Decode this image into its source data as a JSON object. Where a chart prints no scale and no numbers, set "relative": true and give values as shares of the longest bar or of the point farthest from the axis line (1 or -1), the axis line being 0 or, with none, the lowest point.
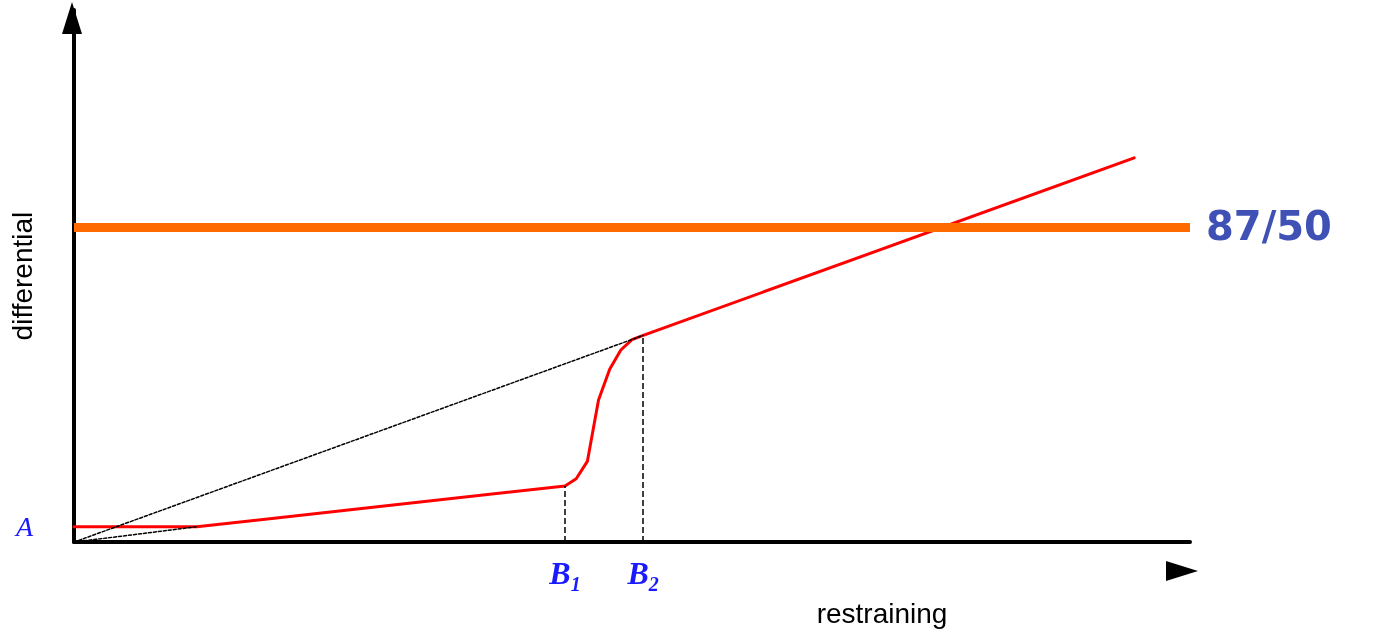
{
  "chart_data": {
    "type": "line",
    "relative": true,
    "xlabel": "restraining",
    "ylabel": "differential",
    "categories": [
      null,
      null,
      null,
      null,
      null,
      null,
      null,
      null,
      null,
      null,
      null,
      null,
      null,
      null,
      null,
      null,
      null,
      null,
      null,
      null,
      null,
      null,
      null,
      null,
      null,
      null,
      null,
      null,
      null,
      null,
      null,
      null,
      null,
      null,
      null,
      null,
      null,
      null,
      null,
      null,
      null,
      null,
      null,
      null,
      "B$_{1}$",
      null,
      null,
      null,
      null,
      null,
      null,
      "B$_{2}$",
      null,
      null,
      null,
      null,
      null,
      null,
      null,
      null,
      null,
      null,
      null,
      null,
      null,
      null,
      null,
      null,
      null,
      null,
      null,
      null,
      null,
      null,
      null,
      null,
      null,
      null,
      null,
      null,
      null,
      null,
      null,
      null,
      null,
      null,
      null,
      null,
      null,
      null,
      null,
      null,
      null,
      null,
      null,
      null,
      null,
      null,
      null,
      null,
      null
    ],
    "annotations": [
      "A",
      "87/50"
    ],
    "ref_lines": [
      {
        "axis": "y",
        "value": 0.822,
        "color": "#ff6a00"
      },
      {
        "axis": "x",
        "value": "B$_{1}$",
        "color": "#000000",
        "line_style": "dashed"
      },
      {
        "axis": "x",
        "value": "B$_{2}$",
        "color": "#000000",
        "line_style": "dashed"
      }
    ],
    "marker": "none",
    "series": [
      {
        "color": "#ff0000",
        "line_style": "solid",
        "values": [
          0.04,
          null,
          null,
          null,
          null,
          null,
          null,
          null,
          null,
          null,
          null,
          0.04,
          null,
          null,
          null,
          null,
          null,
          null,
          null,
          null,
          null,
          null,
          null,
          null,
          null,
          null,
          null,
          null,
          null,
          null,
          null,
          null,
          null,
          null,
          null,
          null,
          null,
          null,
          null,
          null,
          null,
          null,
          null,
          null,
          0.146,
          0.165,
          0.21,
          0.37,
          0.45,
          0.5,
          0.527,
          0.538,
          null,
          null,
          null,
          null,
          null,
          null,
          null,
          null,
          null,
          null,
          null,
          null,
          null,
          null,
          null,
          null,
          null,
          null,
          null,
          null,
          null,
          null,
          null,
          null,
          null,
          null,
          null,
          null,
          null,
          null,
          null,
          null,
          null,
          null,
          null,
          null,
          null,
          null,
          null,
          null,
          null,
          null,
          null,
          1,
          null,
          null,
          null,
          null,
          null
        ]
      },
      {
        "color": "#000000",
        "line_style": "dashed",
        "values": [
          0,
          null,
          null,
          null,
          null,
          null,
          null,
          null,
          null,
          null,
          null,
          null,
          null,
          null,
          null,
          null,
          null,
          null,
          null,
          null,
          null,
          null,
          null,
          null,
          null,
          null,
          null,
          null,
          null,
          null,
          null,
          null,
          null,
          null,
          null,
          null,
          null,
          null,
          null,
          null,
          null,
          null,
          null,
          null,
          null,
          null,
          null,
          null,
          null,
          null,
          null,
          0.538,
          null,
          null,
          null,
          null,
          null,
          null,
          null,
          null,
          null,
          null,
          null,
          null,
          null,
          null,
          null,
          null,
          null,
          null,
          null,
          null,
          null,
          null,
          null,
          null,
          null,
          null,
          null,
          null,
          null,
          null,
          null,
          null,
          null,
          null,
          null,
          null,
          null,
          null,
          null,
          null,
          null,
          null,
          null,
          null,
          null,
          null,
          null,
          null,
          null
        ]
      },
      {
        "color": "#000000",
        "line_style": "dashed",
        "values": [
          0,
          null,
          null,
          null,
          null,
          null,
          null,
          null,
          null,
          null,
          null,
          0.04,
          null,
          null,
          null,
          null,
          null,
          null,
          null,
          null,
          null,
          null,
          null,
          null,
          null,
          null,
          null,
          null,
          null,
          null,
          null,
          null,
          null,
          null,
          null,
          null,
          null,
          null,
          null,
          null,
          null,
          null,
          null,
          null,
          null,
          null,
          null,
          null,
          null,
          null,
          null,
          null,
          null,
          null,
          null,
          null,
          null,
          null,
          null,
          null,
          null,
          null,
          null,
          null,
          null,
          null,
          null,
          null,
          null,
          null,
          null,
          null,
          null,
          null,
          null,
          null,
          null,
          null,
          null,
          null,
          null,
          null,
          null,
          null,
          null,
          null,
          null,
          null,
          null,
          null,
          null,
          null,
          null,
          null,
          null,
          null,
          null,
          null,
          null,
          null,
          null
        ]
      }
    ]
  }
}
